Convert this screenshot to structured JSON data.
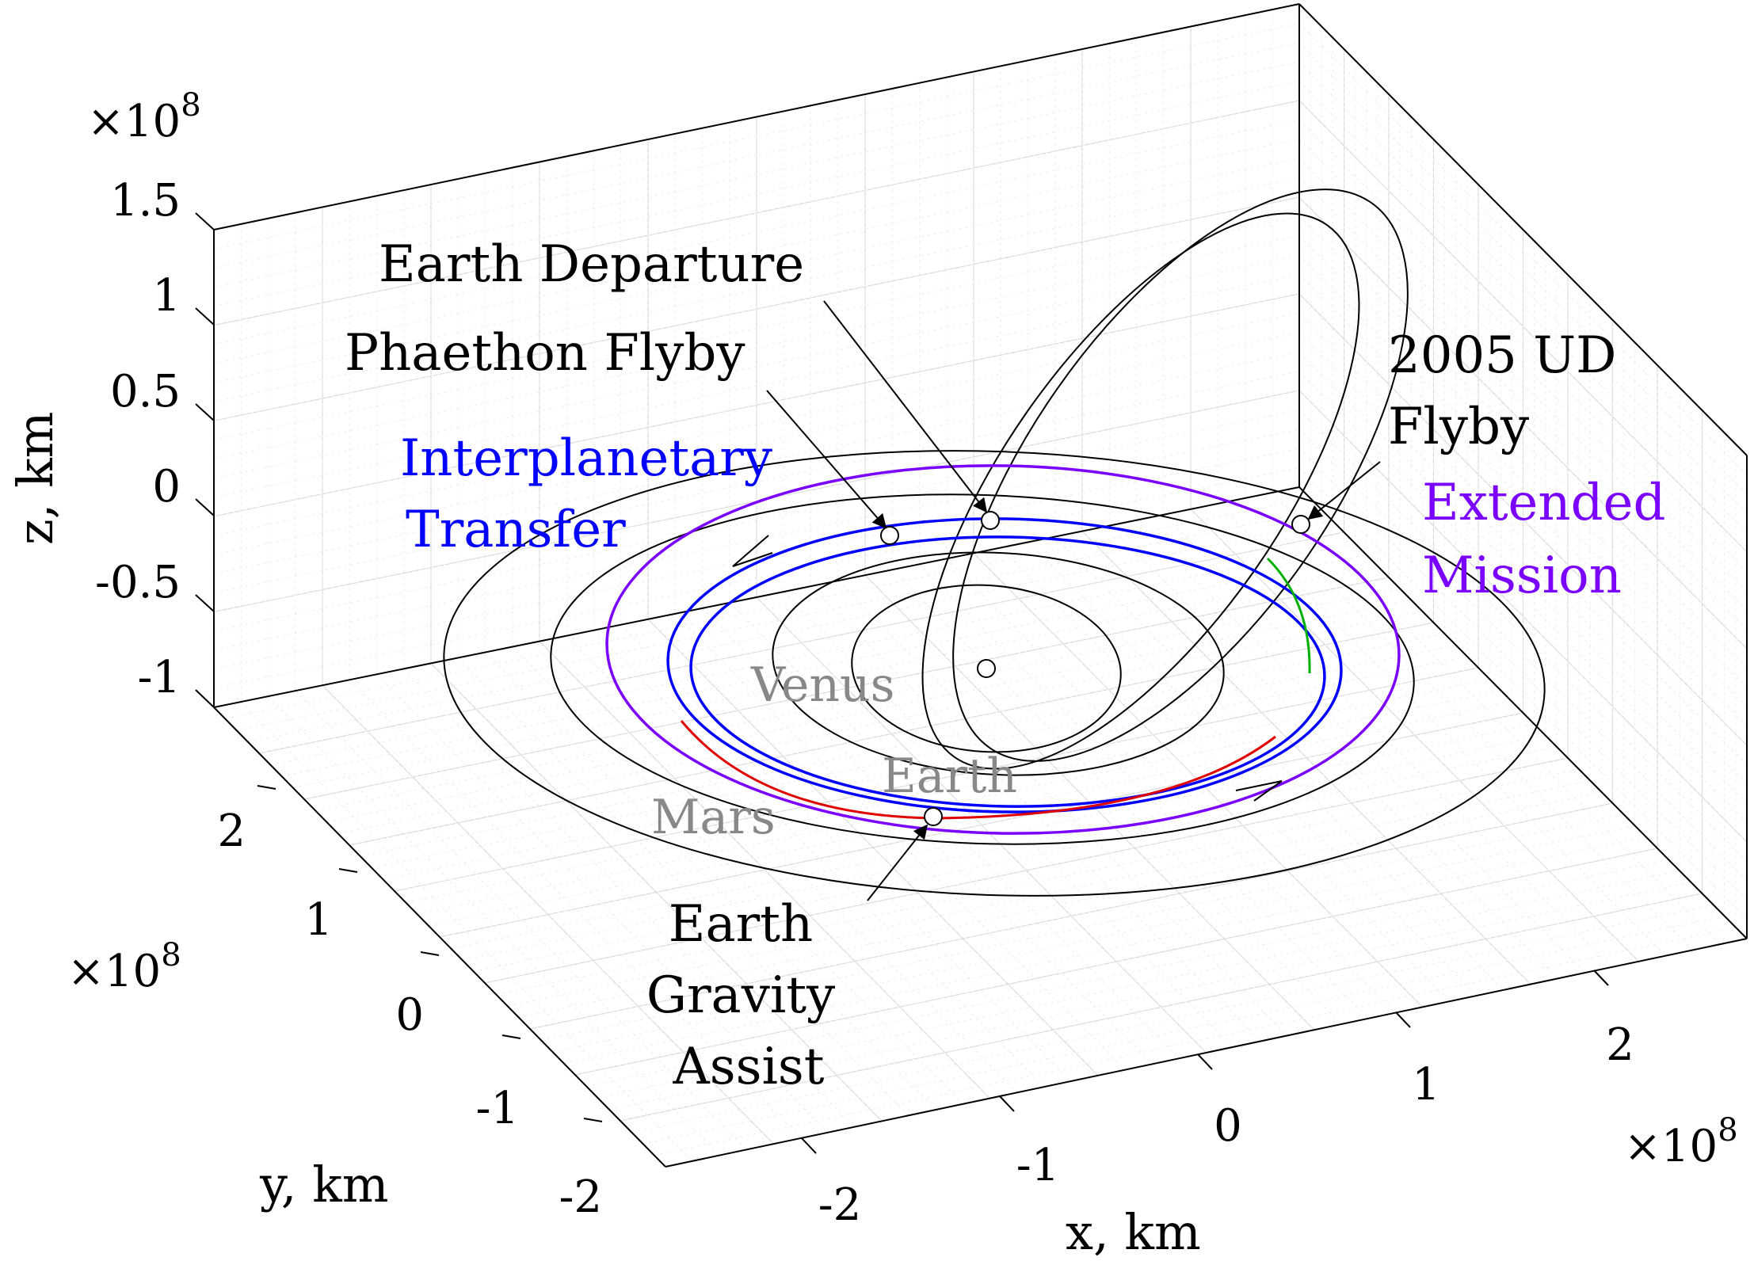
{
  "chart_data": {
    "type": "line",
    "dimensions": "3d",
    "title": "",
    "xlabel": "x, km",
    "ylabel": "y, km",
    "zlabel": "z, km",
    "x_ticks": [
      "-2",
      "-1",
      "0",
      "1",
      "2"
    ],
    "y_ticks": [
      "-2",
      "-1",
      "0",
      "1",
      "2"
    ],
    "z_ticks": [
      "1.5",
      "1",
      "0.5",
      "0",
      "-0.5",
      "-1"
    ],
    "x_exponent": "×10",
    "x_exponent_power": "8",
    "y_exponent": "×10",
    "y_exponent_power": "8",
    "z_exponent": "×10",
    "z_exponent_power": "8",
    "xlim": [
      -2.6,
      2.6
    ],
    "ylim": [
      -2.6,
      2.6
    ],
    "zlim": [
      -1,
      1.5
    ],
    "grid": true,
    "minor_grid": true,
    "colors": {
      "orbit": "#000000",
      "interplanetary": "#0000ff",
      "extended": "#7a00ff",
      "segment_red": "#e00000",
      "segment_green": "#00b000",
      "planet_label": "#888888",
      "grid": "#d9d9d9"
    },
    "planet_labels": [
      "Venus",
      "Earth",
      "Mars"
    ],
    "annotations": {
      "earth_departure": "Earth Departure",
      "phaethon_flyby": "Phaethon Flyby",
      "ud_flyby_line1": "2005 UD",
      "ud_flyby_line2": "Flyby",
      "extended_line1": "Extended",
      "extended_line2": "Mission",
      "transfer_line1": "Interplanetary",
      "transfer_line2": "Transfer",
      "ega_line1": "Earth",
      "ega_line2": "Gravity",
      "ega_line3": "Assist"
    }
  }
}
